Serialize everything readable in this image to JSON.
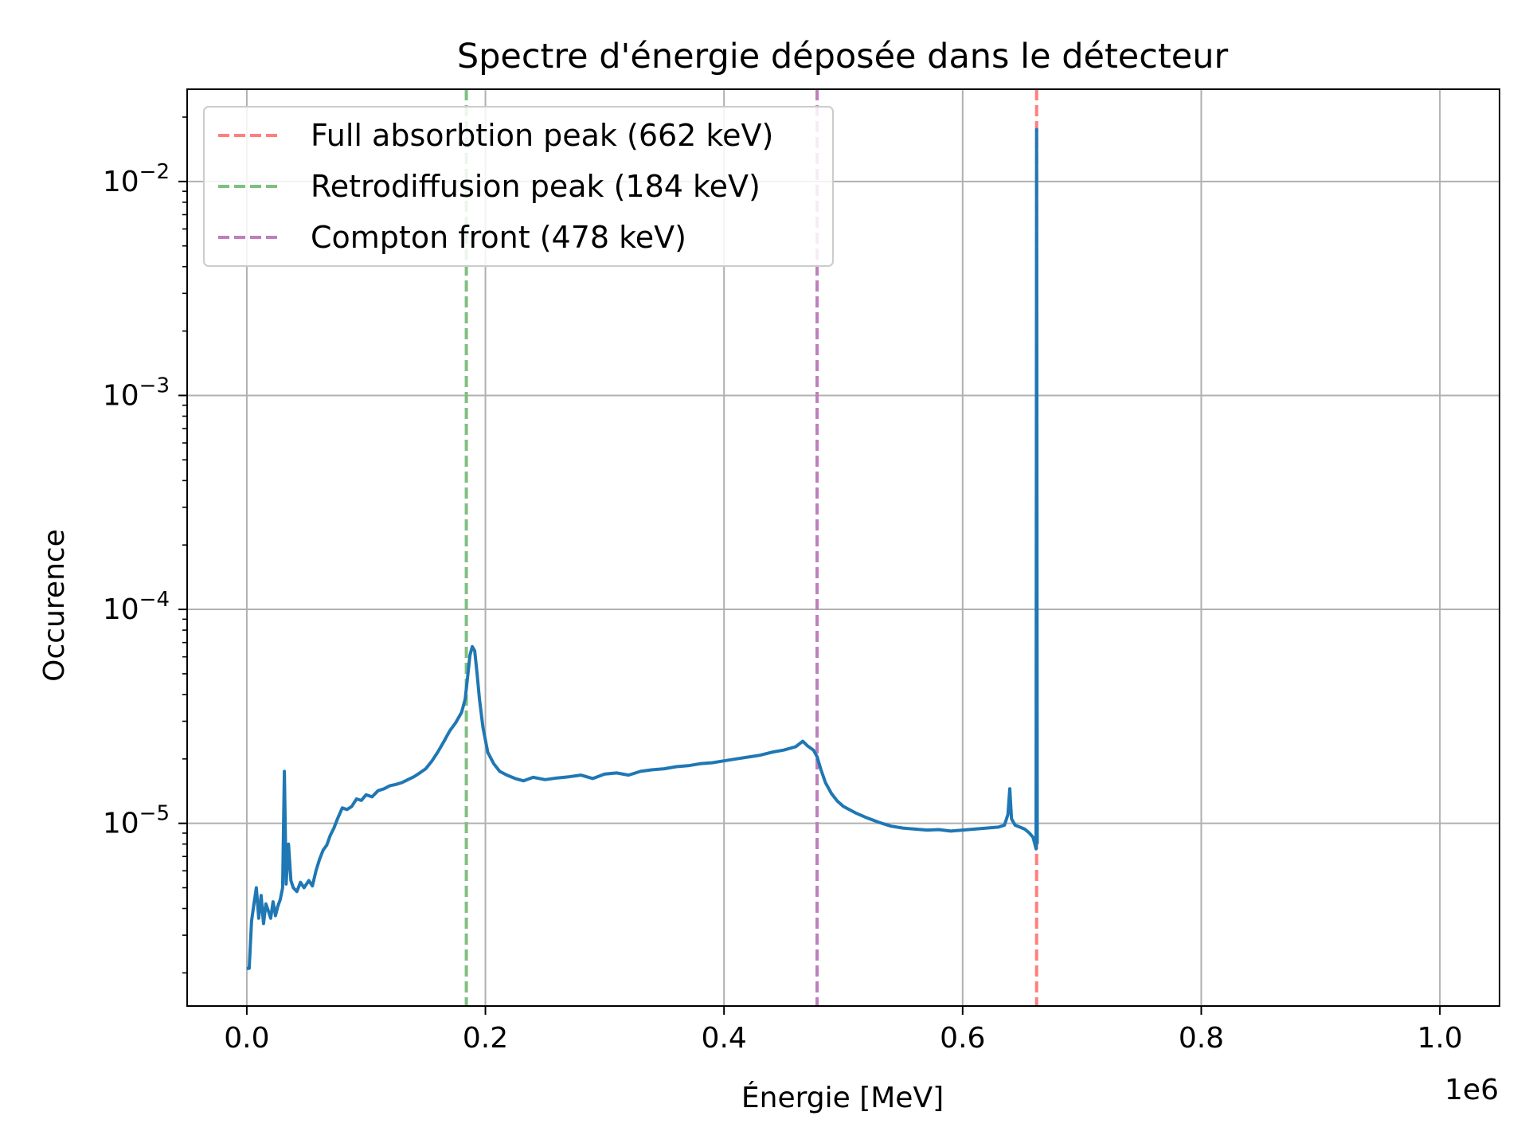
{
  "chart_data": {
    "type": "line",
    "title": "Spectre d'énergie déposée dans le détecteur",
    "xlabel": "Énergie [MeV]",
    "ylabel": "Occurence",
    "x_offset_label": "1e6",
    "xlim": [
      -50000,
      1050000
    ],
    "ylim": [
      1.4e-06,
      0.027
    ],
    "yscale": "log",
    "grid": true,
    "legend_position": "top-left",
    "x_ticks": [
      {
        "value": 0,
        "label": "0.0"
      },
      {
        "value": 200000,
        "label": "0.2"
      },
      {
        "value": 400000,
        "label": "0.4"
      },
      {
        "value": 600000,
        "label": "0.6"
      },
      {
        "value": 800000,
        "label": "0.8"
      },
      {
        "value": 1000000,
        "label": "1.0"
      }
    ],
    "y_ticks": [
      {
        "value": 1e-05,
        "base": "10",
        "exp": "−5"
      },
      {
        "value": 0.0001,
        "base": "10",
        "exp": "−4"
      },
      {
        "value": 0.001,
        "base": "10",
        "exp": "−3"
      },
      {
        "value": 0.01,
        "base": "10",
        "exp": "−2"
      }
    ],
    "series": [
      {
        "color": "#1f77b4",
        "points": [
          [
            0,
            2.1e-06
          ],
          [
            2000,
            2.1e-06
          ],
          [
            4000,
            3.5e-06
          ],
          [
            6000,
            4.2e-06
          ],
          [
            8000,
            5e-06
          ],
          [
            10000,
            3.6e-06
          ],
          [
            12000,
            4.6e-06
          ],
          [
            14000,
            3.4e-06
          ],
          [
            16000,
            4.2e-06
          ],
          [
            18000,
            3.9e-06
          ],
          [
            20000,
            3.6e-06
          ],
          [
            22000,
            4.3e-06
          ],
          [
            24000,
            3.7e-06
          ],
          [
            26000,
            4.1e-06
          ],
          [
            28000,
            4.4e-06
          ],
          [
            30000,
            5e-06
          ],
          [
            31500,
            1.75e-05
          ],
          [
            33000,
            5.2e-06
          ],
          [
            35000,
            8e-06
          ],
          [
            37000,
            5.4e-06
          ],
          [
            39000,
            5e-06
          ],
          [
            42000,
            4.8e-06
          ],
          [
            45000,
            5.3e-06
          ],
          [
            48000,
            5e-06
          ],
          [
            52000,
            5.4e-06
          ],
          [
            55000,
            5.1e-06
          ],
          [
            58000,
            6e-06
          ],
          [
            61000,
            6.8e-06
          ],
          [
            64000,
            7.5e-06
          ],
          [
            67000,
            7.9e-06
          ],
          [
            70000,
            8.8e-06
          ],
          [
            73000,
            9.5e-06
          ],
          [
            76000,
            1.05e-05
          ],
          [
            80000,
            1.18e-05
          ],
          [
            84000,
            1.16e-05
          ],
          [
            88000,
            1.2e-05
          ],
          [
            92000,
            1.3e-05
          ],
          [
            96000,
            1.28e-05
          ],
          [
            100000,
            1.36e-05
          ],
          [
            105000,
            1.33e-05
          ],
          [
            110000,
            1.42e-05
          ],
          [
            115000,
            1.45e-05
          ],
          [
            120000,
            1.5e-05
          ],
          [
            125000,
            1.52e-05
          ],
          [
            130000,
            1.55e-05
          ],
          [
            135000,
            1.6e-05
          ],
          [
            140000,
            1.65e-05
          ],
          [
            145000,
            1.72e-05
          ],
          [
            150000,
            1.8e-05
          ],
          [
            155000,
            1.95e-05
          ],
          [
            160000,
            2.15e-05
          ],
          [
            165000,
            2.4e-05
          ],
          [
            170000,
            2.7e-05
          ],
          [
            175000,
            2.95e-05
          ],
          [
            180000,
            3.3e-05
          ],
          [
            183000,
            3.8e-05
          ],
          [
            185000,
            4.8e-05
          ],
          [
            187000,
            6.1e-05
          ],
          [
            189000,
            6.7e-05
          ],
          [
            191000,
            6.4e-05
          ],
          [
            193000,
            5e-05
          ],
          [
            195000,
            3.8e-05
          ],
          [
            198000,
            2.8e-05
          ],
          [
            202000,
            2.15e-05
          ],
          [
            207000,
            1.9e-05
          ],
          [
            212000,
            1.75e-05
          ],
          [
            218000,
            1.68e-05
          ],
          [
            225000,
            1.62e-05
          ],
          [
            232000,
            1.58e-05
          ],
          [
            240000,
            1.64e-05
          ],
          [
            250000,
            1.6e-05
          ],
          [
            260000,
            1.63e-05
          ],
          [
            270000,
            1.65e-05
          ],
          [
            280000,
            1.68e-05
          ],
          [
            290000,
            1.62e-05
          ],
          [
            300000,
            1.7e-05
          ],
          [
            310000,
            1.72e-05
          ],
          [
            320000,
            1.68e-05
          ],
          [
            330000,
            1.75e-05
          ],
          [
            340000,
            1.78e-05
          ],
          [
            350000,
            1.8e-05
          ],
          [
            360000,
            1.84e-05
          ],
          [
            370000,
            1.86e-05
          ],
          [
            380000,
            1.9e-05
          ],
          [
            390000,
            1.92e-05
          ],
          [
            400000,
            1.96e-05
          ],
          [
            410000,
            2e-05
          ],
          [
            420000,
            2.04e-05
          ],
          [
            430000,
            2.08e-05
          ],
          [
            440000,
            2.15e-05
          ],
          [
            450000,
            2.2e-05
          ],
          [
            460000,
            2.28e-05
          ],
          [
            466000,
            2.42e-05
          ],
          [
            470000,
            2.3e-05
          ],
          [
            475000,
            2.2e-05
          ],
          [
            478000,
            2.05e-05
          ],
          [
            481000,
            1.8e-05
          ],
          [
            485000,
            1.55e-05
          ],
          [
            490000,
            1.38e-05
          ],
          [
            495000,
            1.27e-05
          ],
          [
            500000,
            1.2e-05
          ],
          [
            510000,
            1.12e-05
          ],
          [
            520000,
            1.06e-05
          ],
          [
            530000,
            1.01e-05
          ],
          [
            540000,
            9.7e-06
          ],
          [
            550000,
            9.5e-06
          ],
          [
            560000,
            9.4e-06
          ],
          [
            570000,
            9.3e-06
          ],
          [
            580000,
            9.35e-06
          ],
          [
            590000,
            9.2e-06
          ],
          [
            600000,
            9.3e-06
          ],
          [
            610000,
            9.4e-06
          ],
          [
            620000,
            9.5e-06
          ],
          [
            630000,
            9.6e-06
          ],
          [
            635000,
            9.8e-06
          ],
          [
            638000,
            1.1e-05
          ],
          [
            639500,
            1.45e-05
          ],
          [
            641000,
            1.05e-05
          ],
          [
            644000,
            9.8e-06
          ],
          [
            648000,
            9.6e-06
          ],
          [
            652000,
            9.4e-06
          ],
          [
            656000,
            9e-06
          ],
          [
            659000,
            8.6e-06
          ],
          [
            660500,
            8e-06
          ],
          [
            661500,
            7.6e-06
          ],
          [
            662000,
            0.0175
          ],
          [
            662500,
            8e-06
          ]
        ]
      }
    ],
    "vlines": [
      {
        "x": 662000,
        "color": "#ff7f7f",
        "label": "Full absorbtion peak (662 keV)"
      },
      {
        "x": 184000,
        "color": "#7fbf7f",
        "label": "Retrodiffusion peak (184 keV)"
      },
      {
        "x": 478000,
        "color": "#bf7fbf",
        "label": "Compton front (478 keV)"
      }
    ]
  }
}
